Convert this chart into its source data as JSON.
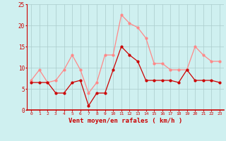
{
  "x": [
    0,
    1,
    2,
    3,
    4,
    5,
    6,
    7,
    8,
    9,
    10,
    11,
    12,
    13,
    14,
    15,
    16,
    17,
    18,
    19,
    20,
    21,
    22,
    23
  ],
  "wind_avg": [
    6.5,
    6.5,
    6.5,
    4.0,
    4.0,
    6.5,
    7.0,
    1.0,
    4.0,
    4.0,
    9.5,
    15.0,
    13.0,
    11.5,
    7.0,
    7.0,
    7.0,
    7.0,
    6.5,
    9.5,
    7.0,
    7.0,
    7.0,
    6.5
  ],
  "wind_gust": [
    7.0,
    9.5,
    6.5,
    7.0,
    9.5,
    13.0,
    9.5,
    4.0,
    6.5,
    13.0,
    13.0,
    22.5,
    20.5,
    19.5,
    17.0,
    11.0,
    11.0,
    9.5,
    9.5,
    9.5,
    15.0,
    13.0,
    11.5,
    11.5
  ],
  "color_avg": "#cc0000",
  "color_gust": "#ff8888",
  "bg_color": "#cff0f0",
  "grid_color": "#aacccc",
  "xlabel": "Vent moyen/en rafales ( km/h )",
  "xlabel_color": "#cc0000",
  "tick_color": "#cc0000",
  "ylim": [
    0,
    25
  ],
  "yticks": [
    0,
    5,
    10,
    15,
    20,
    25
  ],
  "xlim": [
    -0.5,
    23.5
  ]
}
